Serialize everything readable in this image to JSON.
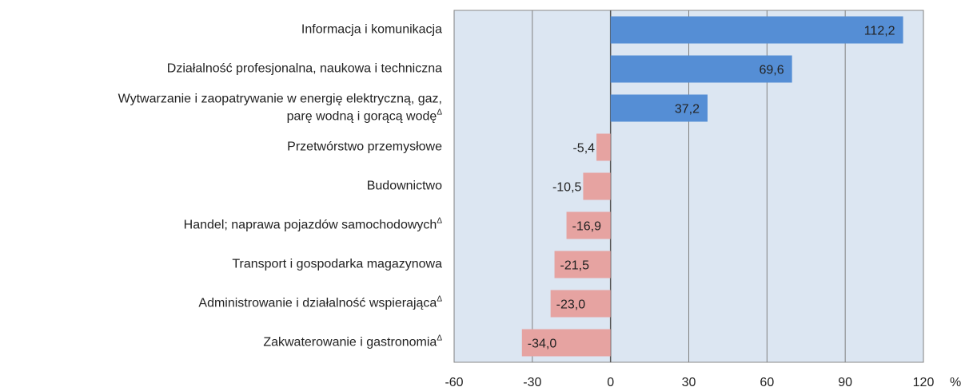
{
  "chart_data": {
    "type": "bar",
    "orientation": "horizontal",
    "categories": [
      "Informacja i komunikacja",
      "Działalność profesjonalna, naukowa i techniczna",
      "Wytwarzanie i zaopatrywanie w energię elektryczną, gaz,\nparę wodną i gorącą wodęΔ",
      "Przetwórstwo przemysłowe",
      "Budownictwo",
      "Handel; naprawa pojazdów samochodowychΔ",
      "Transport i gospodarka magazynowa",
      "Administrowanie i działalność wspierającaΔ",
      "Zakwaterowanie i gastronomiaΔ"
    ],
    "values": [
      112.2,
      69.6,
      37.2,
      -5.4,
      -10.5,
      -16.9,
      -21.5,
      -23.0,
      -34.0
    ],
    "value_labels": [
      "112,2",
      "69,6",
      "37,2",
      "-5,4",
      "-10,5",
      "-16,9",
      "-21,5",
      "-23,0",
      "-34,0"
    ],
    "positive_color": "#558ed5",
    "negative_color": "#e6a3a1",
    "background": "#dce6f2",
    "xlim": [
      -60,
      120
    ],
    "xticks": [
      -60,
      -30,
      0,
      30,
      60,
      90,
      120
    ],
    "x_label": "%",
    "grid": true
  }
}
